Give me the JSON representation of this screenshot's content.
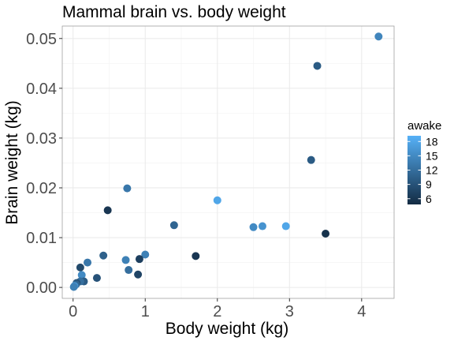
{
  "chart_data": {
    "type": "scatter",
    "title": "Mammal brain vs. body weight",
    "xlabel": "Body weight (kg)",
    "ylabel": "Brain weight (kg)",
    "xlim": [
      -0.15,
      4.45
    ],
    "ylim": [
      -0.0022,
      0.0525
    ],
    "x_ticks": [
      0,
      1,
      2,
      3,
      4
    ],
    "x_tick_labels": [
      "0",
      "1",
      "2",
      "3",
      "4"
    ],
    "y_ticks": [
      0,
      0.01,
      0.02,
      0.03,
      0.04,
      0.05
    ],
    "y_tick_labels": [
      "0.00",
      "0.01",
      "0.02",
      "0.03",
      "0.04",
      "0.05"
    ],
    "grid": true,
    "color_legend": {
      "title": "awake",
      "position": "right",
      "range": [
        4.8,
        19.2
      ],
      "ticks": [
        6,
        9,
        12,
        15,
        18
      ],
      "tick_labels": [
        "6",
        "9",
        "12",
        "15",
        "18"
      ],
      "low_color": "#132B43",
      "high_color": "#56B1F7"
    },
    "points": [
      {
        "x": 4.235,
        "y": 0.0504,
        "awake": 14.5
      },
      {
        "x": 3.385,
        "y": 0.0445,
        "awake": 10.0
      },
      {
        "x": 3.3,
        "y": 0.0256,
        "awake": 10.0
      },
      {
        "x": 0.75,
        "y": 0.0199,
        "awake": 13.0
      },
      {
        "x": 2.0,
        "y": 0.0175,
        "awake": 18.0
      },
      {
        "x": 0.48,
        "y": 0.0155,
        "awake": 6.0
      },
      {
        "x": 1.4,
        "y": 0.0125,
        "awake": 11.0
      },
      {
        "x": 2.5,
        "y": 0.0121,
        "awake": 15.0
      },
      {
        "x": 2.625,
        "y": 0.0123,
        "awake": 16.0
      },
      {
        "x": 2.95,
        "y": 0.0123,
        "awake": 18.0
      },
      {
        "x": 3.5,
        "y": 0.0108,
        "awake": 5.5
      },
      {
        "x": 1.7,
        "y": 0.0063,
        "awake": 6.0
      },
      {
        "x": 1.0,
        "y": 0.0066,
        "awake": 14.0
      },
      {
        "x": 0.92,
        "y": 0.0057,
        "awake": 7.0
      },
      {
        "x": 0.73,
        "y": 0.0055,
        "awake": 14.0
      },
      {
        "x": 0.42,
        "y": 0.0064,
        "awake": 10.5
      },
      {
        "x": 0.2,
        "y": 0.005,
        "awake": 13.0
      },
      {
        "x": 0.77,
        "y": 0.0035,
        "awake": 12.0
      },
      {
        "x": 0.9,
        "y": 0.0026,
        "awake": 7.5
      },
      {
        "x": 0.33,
        "y": 0.0019,
        "awake": 9.0
      },
      {
        "x": 0.1,
        "y": 0.004,
        "awake": 8.0
      },
      {
        "x": 0.12,
        "y": 0.0025,
        "awake": 15.0
      },
      {
        "x": 0.15,
        "y": 0.0012,
        "awake": 10.0
      },
      {
        "x": 0.1,
        "y": 0.0012,
        "awake": 12.0
      },
      {
        "x": 0.05,
        "y": 0.0009,
        "awake": 9.0
      },
      {
        "x": 0.04,
        "y": 0.0006,
        "awake": 11.0
      },
      {
        "x": 0.02,
        "y": 0.0003,
        "awake": 16.0
      },
      {
        "x": 0.01,
        "y": 0.0001,
        "awake": 14.0
      }
    ]
  }
}
